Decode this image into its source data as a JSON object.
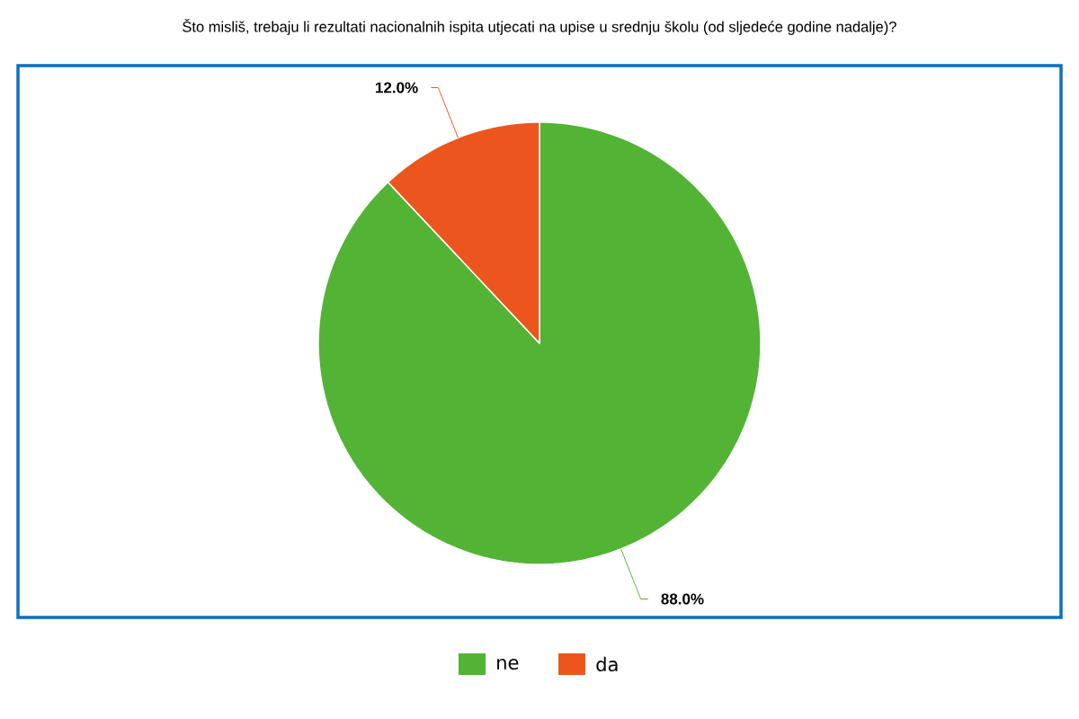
{
  "chart_data": {
    "type": "pie",
    "title": "Što misliš, trebaju li rezultati nacionalnih ispita utjecati na upise u srednju školu (od sljedeće godine nadalje)?",
    "categories": [
      "ne",
      "da"
    ],
    "values": [
      88,
      12
    ],
    "colors": [
      "#52b335",
      "#ec561e"
    ],
    "value_labels": [
      "88.0%",
      "12.0%"
    ],
    "legend": "bottom"
  }
}
